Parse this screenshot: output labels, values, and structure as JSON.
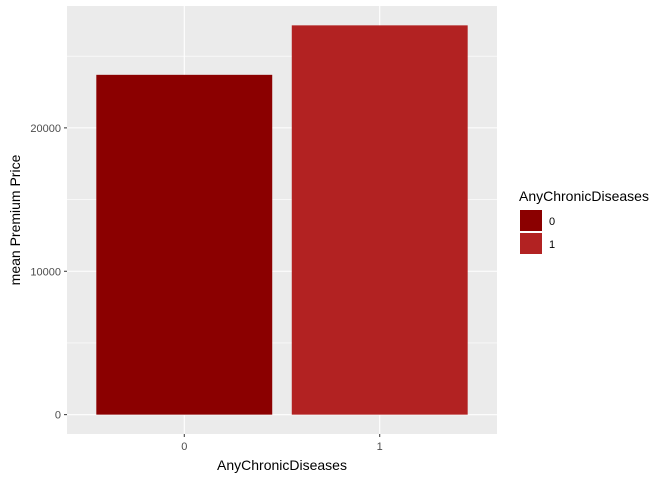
{
  "chart_data": {
    "type": "bar",
    "categories": [
      "0",
      "1"
    ],
    "values": [
      23700,
      27150
    ],
    "xlabel": "AnyChronicDiseases",
    "ylabel": "mean Premium Price",
    "ylim": [
      -1350,
      28500
    ],
    "yticks": [
      0,
      10000,
      20000
    ],
    "ytick_labels": [
      "0",
      "10000",
      "20000"
    ],
    "grid": true,
    "panel_background": "#ebebeb",
    "grid_color": "#ffffff",
    "colors": [
      "#8b0000",
      "#b22222"
    ],
    "legend": {
      "title": "AnyChronicDiseases",
      "placement": "right",
      "entries": [
        "0",
        "1"
      ]
    }
  }
}
